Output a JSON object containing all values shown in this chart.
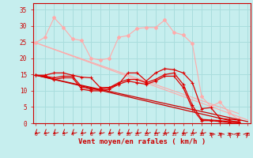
{
  "xlabel": "Vent moyen/en rafales ( km/h )",
  "background_color": "#c6eeee",
  "grid_color": "#aadddd",
  "x_ticks": [
    0,
    1,
    2,
    3,
    4,
    5,
    6,
    7,
    8,
    9,
    10,
    11,
    12,
    13,
    14,
    15,
    16,
    17,
    18,
    19,
    20,
    21,
    22,
    23
  ],
  "y_ticks": [
    0,
    5,
    10,
    15,
    20,
    25,
    30,
    35
  ],
  "ylim": [
    0,
    37
  ],
  "xlim": [
    -0.3,
    23.3
  ],
  "line1_dark": {
    "y": [
      14.8,
      14.8,
      15.5,
      15.5,
      14.8,
      14.2,
      14.0,
      11.0,
      11.0,
      12.0,
      15.5,
      15.5,
      13.0,
      15.5,
      16.8,
      16.5,
      15.5,
      12.5,
      4.5,
      4.8,
      1.5,
      1.2,
      1.0
    ],
    "color": "#dd0000"
  },
  "line2_dark": {
    "y": [
      14.8,
      14.5,
      14.0,
      14.5,
      14.5,
      11.2,
      10.5,
      10.5,
      11.0,
      12.5,
      13.5,
      13.5,
      12.5,
      13.5,
      15.0,
      15.5,
      12.0,
      5.5,
      1.2,
      1.0,
      0.8,
      0.5,
      0.5
    ],
    "color": "#dd0000"
  },
  "line3_dark": {
    "y": [
      14.8,
      14.5,
      13.5,
      14.0,
      14.0,
      10.5,
      10.0,
      10.0,
      10.5,
      12.0,
      13.0,
      12.5,
      12.0,
      13.0,
      14.5,
      14.5,
      11.0,
      4.5,
      0.8,
      0.8,
      0.5,
      0.2,
      0.2
    ],
    "color": "#dd0000"
  },
  "line4_dark_straight": {
    "y": [
      14.8,
      0.2
    ],
    "x": [
      0,
      22
    ],
    "color": "#cc0000"
  },
  "line5_dark_straight": {
    "y": [
      14.8,
      0.5
    ],
    "x": [
      0,
      23
    ],
    "color": "#cc0000"
  },
  "line6_pink_jagged": {
    "y": [
      24.8,
      26.5,
      32.5,
      29.5,
      26.0,
      25.5,
      20.0,
      19.5,
      20.0,
      26.5,
      27.0,
      29.2,
      29.5,
      29.5,
      31.8,
      28.0,
      27.2,
      24.5,
      8.2,
      5.2,
      6.5,
      3.2,
      1.2
    ],
    "color": "#ffaaaa"
  },
  "line7_pink_straight": {
    "y": [
      24.8,
      1.0
    ],
    "x": [
      0,
      23
    ],
    "color": "#ffaaaa"
  },
  "line8_pink_straight2": {
    "y": [
      24.8,
      3.0
    ],
    "x": [
      0,
      22
    ],
    "color": "#ffaaaa"
  },
  "arrows": {
    "angles_deg": [
      225,
      225,
      225,
      225,
      225,
      225,
      225,
      225,
      225,
      225,
      225,
      225,
      225,
      225,
      225,
      225,
      225,
      225,
      225,
      315,
      315,
      315,
      45,
      45
    ]
  }
}
